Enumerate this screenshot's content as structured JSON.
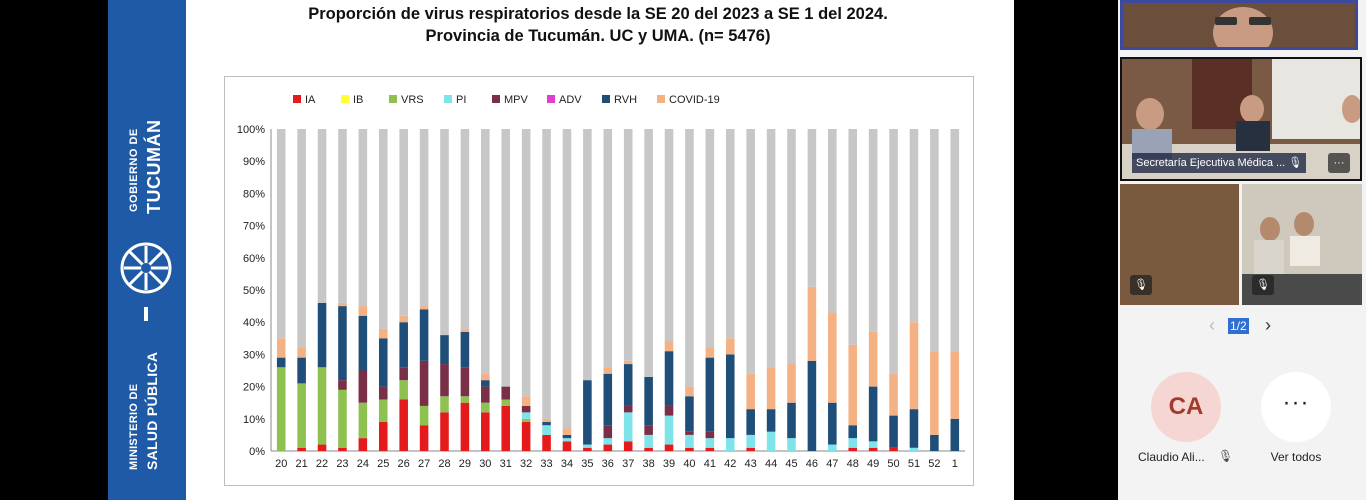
{
  "slide": {
    "brand_lines": [
      "GOBIERNO DE",
      "TUCUMÁN",
      "MINISTERIO DE",
      "SALUD PÚBLICA"
    ],
    "title_line1": "Proporción de virus respiratorios desde la SE 20 del 2023 a SE 1 del 2024.",
    "title_line2": "Provincia de Tucumán. UC y UMA. (n= 5476)"
  },
  "chart_data": {
    "type": "bar",
    "stacked": true,
    "title": "",
    "xlabel": "",
    "ylabel": "",
    "ylim": [
      0,
      100
    ],
    "yticks": [
      "0%",
      "10%",
      "20%",
      "30%",
      "40%",
      "50%",
      "60%",
      "70%",
      "80%",
      "90%",
      "100%"
    ],
    "legend_position": "top",
    "categories": [
      "20",
      "21",
      "22",
      "23",
      "24",
      "25",
      "26",
      "27",
      "28",
      "29",
      "30",
      "31",
      "32",
      "33",
      "34",
      "35",
      "36",
      "37",
      "38",
      "39",
      "40",
      "41",
      "42",
      "43",
      "44",
      "45",
      "46",
      "47",
      "48",
      "49",
      "50",
      "51",
      "52",
      "1"
    ],
    "series": [
      {
        "name": "IA",
        "color": "#e41a1c",
        "values": [
          0,
          1,
          2,
          1,
          4,
          9,
          16,
          8,
          12,
          15,
          12,
          14,
          9,
          5,
          3,
          1,
          2,
          3,
          1,
          2,
          1,
          1,
          0,
          1,
          0,
          0,
          0,
          0,
          1,
          1,
          1,
          0,
          0,
          0
        ]
      },
      {
        "name": "IB",
        "color": "#ffff33",
        "values": [
          0,
          0,
          0,
          0,
          0,
          0,
          0,
          0,
          0,
          0,
          0,
          0,
          0,
          0,
          0,
          0,
          0,
          0,
          0,
          0,
          0,
          0,
          0,
          0,
          0,
          0,
          0,
          0,
          0,
          0,
          0,
          0,
          0,
          0
        ]
      },
      {
        "name": "VRS",
        "color": "#8fc151",
        "values": [
          26,
          20,
          24,
          18,
          11,
          7,
          6,
          6,
          5,
          2,
          3,
          2,
          1,
          0,
          0,
          0,
          0,
          0,
          0,
          0,
          0,
          0,
          0,
          0,
          0,
          0,
          0,
          0,
          0,
          0,
          0,
          0,
          0,
          0
        ]
      },
      {
        "name": "PI",
        "color": "#7fe3ea",
        "values": [
          0,
          0,
          0,
          0,
          0,
          0,
          0,
          0,
          0,
          0,
          0,
          0,
          2,
          3,
          1,
          1,
          2,
          9,
          4,
          9,
          4,
          3,
          4,
          4,
          6,
          4,
          0,
          2,
          3,
          2,
          0,
          1,
          0,
          0
        ]
      },
      {
        "name": "MPV",
        "color": "#7a2f48",
        "values": [
          0,
          0,
          0,
          3,
          10,
          4,
          4,
          14,
          10,
          9,
          5,
          4,
          2,
          0,
          0,
          0,
          4,
          2,
          3,
          3,
          1,
          2,
          0,
          0,
          0,
          0,
          0,
          0,
          0,
          0,
          0,
          0,
          0,
          0
        ]
      },
      {
        "name": "ADV",
        "color": "#e040d0",
        "values": [
          0,
          0,
          0,
          0,
          0,
          0,
          0,
          0,
          0,
          0,
          0,
          0,
          0,
          0,
          0,
          0,
          0,
          0,
          0,
          0,
          0,
          0,
          0,
          0,
          0,
          0,
          0,
          0,
          0,
          0,
          0,
          0,
          0,
          0
        ]
      },
      {
        "name": "RVH",
        "color": "#1f4e79",
        "values": [
          3,
          8,
          20,
          23,
          17,
          15,
          14,
          16,
          9,
          11,
          2,
          0,
          0,
          1,
          1,
          20,
          16,
          13,
          15,
          17,
          11,
          23,
          26,
          8,
          7,
          11,
          28,
          13,
          4,
          17,
          10,
          12,
          5,
          10
        ]
      },
      {
        "name": "COVID-19",
        "color": "#f4b183",
        "values": [
          6,
          3,
          0,
          1,
          3,
          3,
          2,
          1,
          0,
          1,
          2,
          0,
          3,
          1,
          2,
          0,
          2,
          1,
          0,
          3,
          3,
          3,
          5,
          11,
          13,
          12,
          23,
          28,
          25,
          17,
          13,
          27,
          26,
          21
        ]
      }
    ],
    "remainder_color": "#c7c7c7"
  },
  "sidebar": {
    "meeting_label": "Secretaría Ejecutiva Médica ...",
    "pager_prev": "‹",
    "pager_text": "1/2",
    "pager_next": "›",
    "avatar_initials": "CA",
    "avatar_name": "Claudio Ali...",
    "more_label": "Ver todos",
    "more_glyph": "···",
    "mic_glyph": "🎙"
  }
}
